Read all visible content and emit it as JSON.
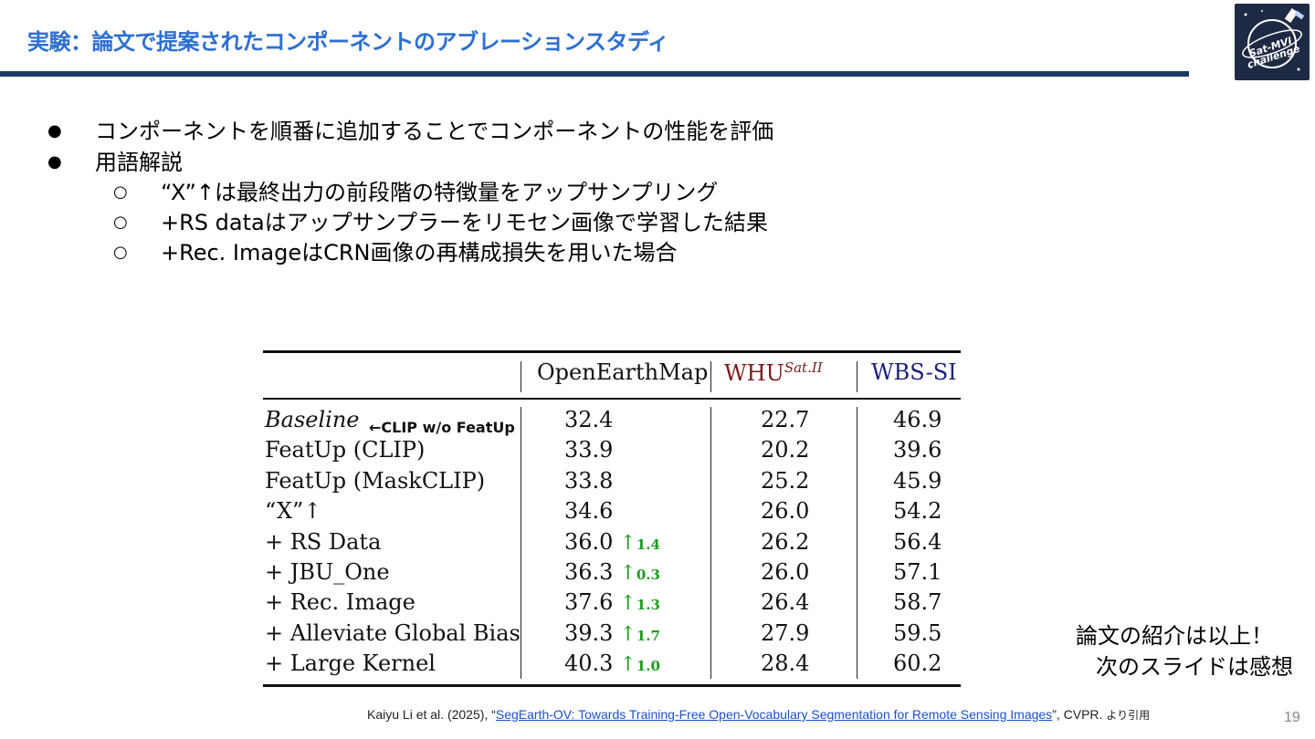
{
  "slide": {
    "title": "実験：論文で提案されたコンポーネントのアブレーションスタディ",
    "logo_text_line1": "Sat-MVI",
    "logo_text_line2": "challenge",
    "page_number": "19"
  },
  "bullets": [
    {
      "level": 1,
      "text": "コンポーネントを順番に追加することでコンポーネントの性能を評価"
    },
    {
      "level": 1,
      "text": "用語解説"
    },
    {
      "level": 2,
      "text": "“X”↑は最終出力の前段階の特徴量をアップサンプリング"
    },
    {
      "level": 2,
      "text": "+RS dataはアップサンプラーをリモセン画像で学習した結果"
    },
    {
      "level": 2,
      "text": "+Rec. ImageはCRN画像の再構成損失を用いた場合"
    }
  ],
  "table": {
    "headers": {
      "col1": "OpenEarthMap",
      "col2_base": "WHU",
      "col2_sup": "Sat.II",
      "col3": "WBS-SI"
    },
    "colors": {
      "whu": "#7a1a1a",
      "wbs": "#1a1f7a",
      "delta": "#1f9a1f"
    },
    "annotation": "←CLIP w/o FeatUp",
    "rows": [
      {
        "name": "Baseline",
        "oem": "32.4",
        "delta": "",
        "whu": "22.7",
        "wbs": "46.9"
      },
      {
        "name": "FeatUp (CLIP)",
        "oem": "33.9",
        "delta": "",
        "whu": "20.2",
        "wbs": "39.6"
      },
      {
        "name": "FeatUp (MaskCLIP)",
        "oem": "33.8",
        "delta": "",
        "whu": "25.2",
        "wbs": "45.9"
      },
      {
        "name": "“X”↑",
        "oem": "34.6",
        "delta": "",
        "whu": "26.0",
        "wbs": "54.2"
      },
      {
        "name": "+ RS Data",
        "oem": "36.0",
        "delta": "1.4",
        "whu": "26.2",
        "wbs": "56.4"
      },
      {
        "name": "+ JBU_One",
        "oem": "36.3",
        "delta": "0.3",
        "whu": "26.0",
        "wbs": "57.1"
      },
      {
        "name": "+ Rec. Image",
        "oem": "37.6",
        "delta": "1.3",
        "whu": "26.4",
        "wbs": "58.7"
      },
      {
        "name": "+ Alleviate Global Bias",
        "oem": "39.3",
        "delta": "1.7",
        "whu": "27.9",
        "wbs": "59.5"
      },
      {
        "name": "+ Large Kernel",
        "oem": "40.3",
        "delta": "1.0",
        "whu": "28.4",
        "wbs": "60.2"
      }
    ]
  },
  "closing": {
    "line1": "論文の紹介は以上！",
    "line2": "次のスライドは感想"
  },
  "citation": {
    "prefix": "Kaiyu Li et al. (2025), “",
    "link_text": "SegEarth-OV: Towards Training-Free Open-Vocabulary Segmentation for Remote Sensing Images",
    "suffix": "”, CVPR. ",
    "tail": "より引用"
  }
}
